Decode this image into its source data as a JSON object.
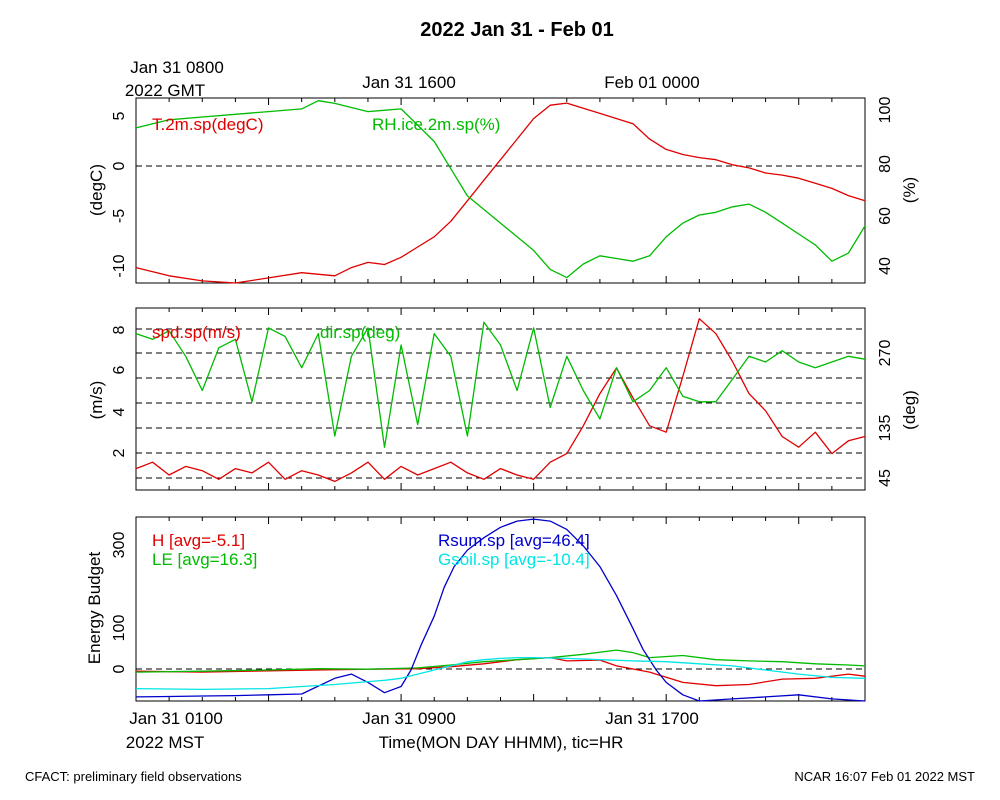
{
  "page": {
    "title": "2022 Jan 31 - Feb 01",
    "footer_left": "CFACT: preliminary field observations",
    "footer_right": "NCAR 16:07 Feb 01 2022 MST"
  },
  "top_axis": {
    "labels": [
      "Jan 31 0800",
      "Jan 31 1600",
      "Feb 01 0000"
    ],
    "year_label": "2022 GMT"
  },
  "bottom_axis": {
    "labels": [
      "Jan 31 0100",
      "Jan 31 0900",
      "Jan 31 1700"
    ],
    "year_label": "2022 MST",
    "title": "Time(MON DAY HHMM), tic=HR"
  },
  "panels": [
    {
      "id": "temp-rh",
      "left_axis_label": "(degC)",
      "right_axis_label": "(%)",
      "left_ticks": [
        "5",
        "0",
        "-5",
        "-10"
      ],
      "right_ticks": [
        "100",
        "80",
        "60",
        "40"
      ],
      "series_labels": [
        "T.2m.sp(degC)",
        "RH.ice.2m.sp(%)"
      ]
    },
    {
      "id": "wind",
      "left_axis_label": "(m/s)",
      "right_axis_label": "(deg)",
      "left_ticks": [
        "8",
        "6",
        "4",
        "2"
      ],
      "right_ticks": [
        "270",
        "135",
        "45"
      ],
      "series_labels": [
        "spd.sp(m/s)",
        "dir.sp(deg)"
      ]
    },
    {
      "id": "energy",
      "left_axis_label": "Energy Budget",
      "left_ticks": [
        "300",
        "100",
        "0"
      ],
      "series_labels": [
        "H [avg=-5.1]",
        "LE [avg=16.3]",
        "Rsum.sp [avg=46.4]",
        "Gsoil.sp [avg=-10.4]"
      ]
    }
  ],
  "colors": {
    "red": "#e00000",
    "green": "#00bb00",
    "blue": "#0000cc",
    "cyan": "#00e5e5"
  },
  "chart_data": [
    {
      "type": "line",
      "xlim_mst_hours": [
        0,
        22
      ],
      "left_ylim": [
        -11,
        7
      ],
      "right_ylim": [
        35,
        103
      ],
      "series": [
        {
          "name": "T.2m.sp(degC)",
          "axis": "left",
          "x": [
            0,
            1,
            2,
            3,
            4,
            5,
            6,
            6.5,
            7,
            7.5,
            8,
            8.5,
            9,
            9.5,
            10,
            10.5,
            11,
            11.5,
            12,
            12.5,
            13,
            13.5,
            14,
            15,
            15.5,
            16,
            16.5,
            17,
            17.5,
            18,
            18.5,
            19,
            19.5,
            20,
            20.5,
            21,
            21.5,
            22
          ],
          "y": [
            -9.5,
            -10.3,
            -10.8,
            -11.0,
            -10.5,
            -10.0,
            -10.3,
            -9.5,
            -9.0,
            -9.2,
            -8.5,
            -7.5,
            -6.5,
            -5.0,
            -3.0,
            -1.0,
            1.0,
            3.0,
            5.0,
            6.3,
            6.5,
            6.0,
            5.5,
            4.5,
            3.0,
            2.0,
            1.5,
            1.2,
            1.0,
            0.5,
            0.2,
            -0.3,
            -0.5,
            -0.8,
            -1.3,
            -1.8,
            -2.5,
            -3.0
          ]
        },
        {
          "name": "RH.ice.2m.sp(%)",
          "axis": "right",
          "x": [
            0,
            1,
            2,
            3,
            4,
            5,
            5.5,
            6,
            7,
            8,
            8.5,
            9,
            9.5,
            10,
            10.5,
            11,
            11.5,
            12,
            12.5,
            13,
            13.5,
            14,
            14.5,
            15,
            15.5,
            16,
            16.5,
            17,
            17.5,
            18,
            18.5,
            19,
            19.5,
            20,
            20.5,
            21,
            21.5,
            22
          ],
          "y": [
            92,
            95,
            96,
            97,
            98,
            99,
            102,
            101,
            98,
            99,
            93,
            87,
            77,
            67,
            62,
            57,
            52,
            47,
            40,
            37,
            42,
            45,
            44,
            43,
            45,
            52,
            57,
            60,
            61,
            63,
            64,
            61,
            57,
            53,
            49,
            43,
            46,
            56
          ]
        }
      ]
    },
    {
      "type": "line",
      "xlim_mst_hours": [
        0,
        22
      ],
      "left_ylim": [
        0.5,
        9
      ],
      "right_ylim": [
        25,
        345
      ],
      "series": [
        {
          "name": "spd.sp(m/s)",
          "axis": "left",
          "x": [
            0,
            0.5,
            1,
            1.5,
            2,
            2.5,
            3,
            3.5,
            4,
            4.5,
            5,
            5.5,
            6,
            6.5,
            7,
            7.5,
            8,
            8.5,
            9,
            9.5,
            10,
            10.5,
            11,
            11.5,
            12,
            12.5,
            13,
            13.5,
            14,
            14.5,
            15,
            15.5,
            16,
            16.5,
            17,
            17.5,
            18,
            18.5,
            19,
            19.5,
            20,
            20.5,
            21,
            21.5,
            22
          ],
          "y": [
            1.5,
            1.8,
            1.2,
            1.6,
            1.4,
            1.0,
            1.5,
            1.3,
            1.8,
            1.0,
            1.4,
            1.2,
            0.9,
            1.3,
            1.8,
            1.0,
            1.6,
            1.2,
            1.5,
            1.8,
            1.3,
            1.0,
            1.5,
            1.2,
            1.0,
            1.8,
            2.2,
            3.5,
            5.0,
            6.2,
            4.8,
            3.5,
            3.2,
            5.8,
            8.5,
            7.8,
            6.5,
            5.0,
            4.2,
            3.0,
            2.5,
            3.2,
            2.2,
            2.8,
            3.0
          ]
        },
        {
          "name": "dir.sp(deg)",
          "axis": "right",
          "x": [
            0,
            0.5,
            1,
            1.5,
            2,
            2.5,
            3,
            3.5,
            4,
            4.5,
            5,
            5.5,
            6,
            6.5,
            7,
            7.5,
            8,
            8.5,
            9,
            9.5,
            10,
            10.5,
            11,
            11.5,
            12,
            12.5,
            13,
            13.5,
            14,
            14.5,
            15,
            15.5,
            16,
            16.5,
            17,
            17.5,
            18,
            18.5,
            19,
            19.5,
            20,
            20.5,
            21,
            21.5,
            22
          ],
          "y": [
            300,
            290,
            305,
            260,
            200,
            275,
            290,
            180,
            310,
            295,
            240,
            300,
            120,
            260,
            310,
            100,
            280,
            140,
            300,
            260,
            120,
            320,
            280,
            200,
            310,
            170,
            260,
            200,
            150,
            240,
            180,
            200,
            240,
            190,
            180,
            180,
            220,
            260,
            250,
            270,
            250,
            240,
            250,
            260,
            255
          ]
        }
      ]
    },
    {
      "type": "line",
      "xlim_mst_hours": [
        0,
        22
      ],
      "ylim": [
        -75,
        370
      ],
      "series": [
        {
          "name": "H [avg=-5.1]",
          "x": [
            0,
            2,
            4,
            5.5,
            7,
            8.5,
            9.5,
            10.5,
            11.5,
            12.5,
            13,
            14,
            14.5,
            15.5,
            16.5,
            17.5,
            18.5,
            19.5,
            20.5,
            21.5,
            22
          ],
          "y": [
            -3,
            -5,
            -2,
            0,
            2,
            3,
            8,
            15,
            25,
            30,
            22,
            24,
            10,
            -5,
            -30,
            -38,
            -35,
            -22,
            -20,
            -10,
            -15
          ]
        },
        {
          "name": "LE [avg=16.3]",
          "x": [
            0,
            2,
            4,
            5.5,
            7,
            8.5,
            9.5,
            10.5,
            11.5,
            12.5,
            13.5,
            14.5,
            15,
            15.5,
            16.5,
            17.5,
            18.5,
            19.5,
            20.5,
            21.5,
            22
          ],
          "y": [
            -5,
            -3,
            0,
            3,
            2,
            5,
            12,
            20,
            25,
            30,
            38,
            48,
            42,
            30,
            35,
            25,
            22,
            20,
            15,
            12,
            10
          ]
        },
        {
          "name": "Rsum.sp [avg=46.4]",
          "x": [
            0,
            1,
            2,
            3,
            4,
            5,
            6,
            6.5,
            7,
            7.5,
            8,
            8.3,
            8.6,
            9,
            9.3,
            9.6,
            10,
            10.5,
            11,
            11.5,
            12,
            12.5,
            13,
            13.5,
            14,
            14.5,
            15,
            15.3,
            15.7,
            16,
            16.5,
            17,
            18,
            19,
            20,
            21,
            22
          ],
          "y": [
            -65,
            -64,
            -63,
            -62,
            -60,
            -58,
            -20,
            -10,
            -30,
            -55,
            -40,
            0,
            60,
            130,
            200,
            250,
            290,
            320,
            345,
            360,
            365,
            360,
            340,
            300,
            250,
            180,
            100,
            50,
            0,
            -30,
            -60,
            -75,
            -70,
            -65,
            -60,
            -70,
            -75
          ]
        },
        {
          "name": "Gsoil.sp [avg=-10.4]",
          "x": [
            0,
            2,
            4,
            5,
            6,
            7,
            7.5,
            8,
            8.5,
            9,
            9.5,
            10,
            10.5,
            11,
            11.5,
            12,
            13,
            14,
            15,
            16,
            17,
            18,
            19,
            20,
            21,
            22
          ],
          "y": [
            -45,
            -47,
            -45,
            -40,
            -35,
            -28,
            -25,
            -20,
            -10,
            0,
            10,
            20,
            25,
            28,
            30,
            30,
            28,
            25,
            22,
            20,
            15,
            10,
            0,
            -10,
            -18,
            -20
          ]
        }
      ]
    }
  ]
}
